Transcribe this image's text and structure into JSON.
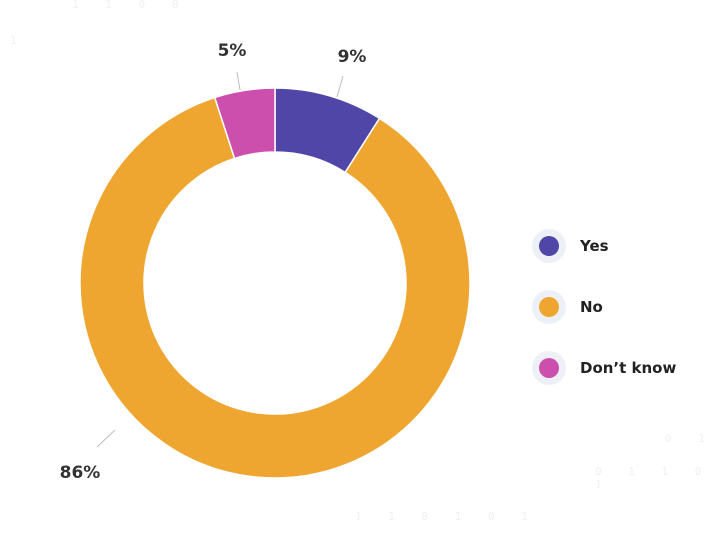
{
  "chart_data": {
    "type": "pie",
    "donut": true,
    "title": "",
    "slices": [
      {
        "label": "Yes",
        "value": 9,
        "display": "9%",
        "color": "#4f46a8"
      },
      {
        "label": "No",
        "value": 86,
        "display": "86%",
        "color": "#eea630"
      },
      {
        "label": "Don’t know",
        "value": 5,
        "display": "5%",
        "color": "#cc4fae"
      }
    ],
    "legend_position": "right"
  },
  "legend": {
    "items": [
      {
        "label": "Yes",
        "color": "#4f46a8"
      },
      {
        "label": "No",
        "color": "#eea630"
      },
      {
        "label": "Don’t know",
        "color": "#cc4fae"
      }
    ]
  }
}
